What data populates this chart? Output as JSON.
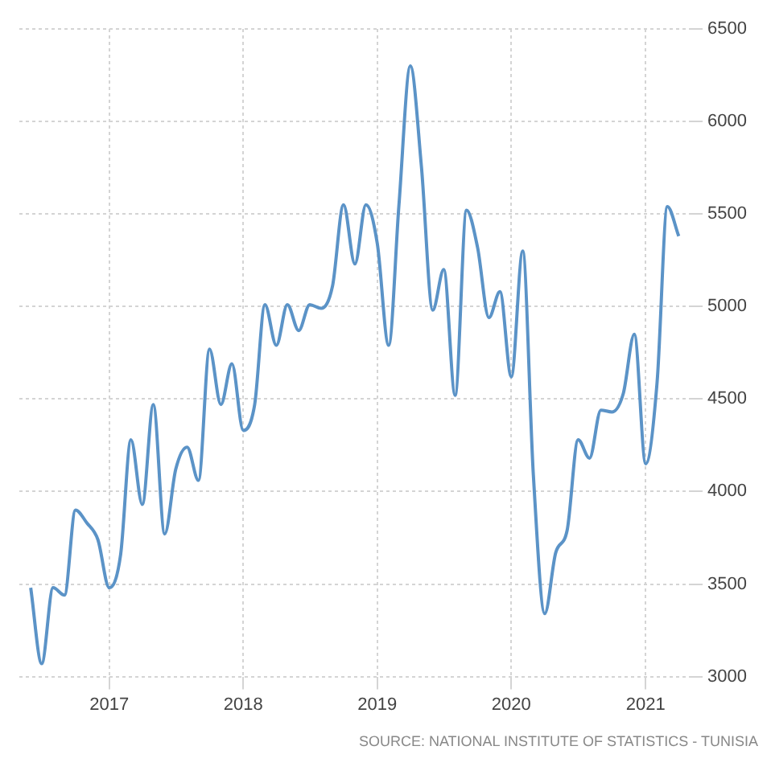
{
  "chart_data": {
    "type": "line",
    "x": [
      "2016-06",
      "2016-07",
      "2016-08",
      "2016-09",
      "2016-10",
      "2016-11",
      "2016-12",
      "2017-01",
      "2017-02",
      "2017-03",
      "2017-04",
      "2017-05",
      "2017-06",
      "2017-07",
      "2017-08",
      "2017-09",
      "2017-10",
      "2017-11",
      "2017-12",
      "2018-01",
      "2018-02",
      "2018-03",
      "2018-04",
      "2018-05",
      "2018-06",
      "2018-07",
      "2018-08",
      "2018-09",
      "2018-10",
      "2018-11",
      "2018-12",
      "2019-01",
      "2019-02",
      "2019-03",
      "2019-04",
      "2019-05",
      "2019-06",
      "2019-07",
      "2019-08",
      "2019-09",
      "2019-10",
      "2019-11",
      "2019-12",
      "2020-01",
      "2020-02",
      "2020-03",
      "2020-04",
      "2020-05",
      "2020-06",
      "2020-07",
      "2020-08",
      "2020-09",
      "2020-10",
      "2020-11",
      "2020-12",
      "2021-01",
      "2021-02",
      "2021-03",
      "2021-04"
    ],
    "series": [
      {
        "color": "#5b93c7",
        "values": [
          3480,
          3070,
          3480,
          3440,
          3900,
          3830,
          3740,
          3480,
          3660,
          4280,
          3930,
          4470,
          3770,
          4120,
          4240,
          4060,
          4770,
          4470,
          4690,
          4330,
          4470,
          5010,
          4790,
          5010,
          4870,
          5010,
          4990,
          5110,
          5550,
          5230,
          5550,
          5340,
          4790,
          5550,
          6300,
          5760,
          4980,
          5200,
          4520,
          5520,
          5320,
          4940,
          5080,
          4620,
          5300,
          4090,
          3340,
          3670,
          3790,
          4280,
          4180,
          4440,
          4430,
          4530,
          4850,
          4150,
          4590,
          5540,
          5380
        ]
      }
    ],
    "xlim": [
      "2016-05",
      "2021-05"
    ],
    "xticks": [
      "2017",
      "2018",
      "2019",
      "2020",
      "2021"
    ],
    "ylim": [
      3000,
      6500
    ],
    "yticks": [
      3000,
      3500,
      4000,
      4500,
      5000,
      5500,
      6000,
      6500
    ],
    "grid": true,
    "legend": false,
    "marker": "none",
    "line_style": "solid",
    "annotations": [
      "SOURCE: NATIONAL INSTITUTE OF STATISTICS - TUNISIA"
    ]
  }
}
